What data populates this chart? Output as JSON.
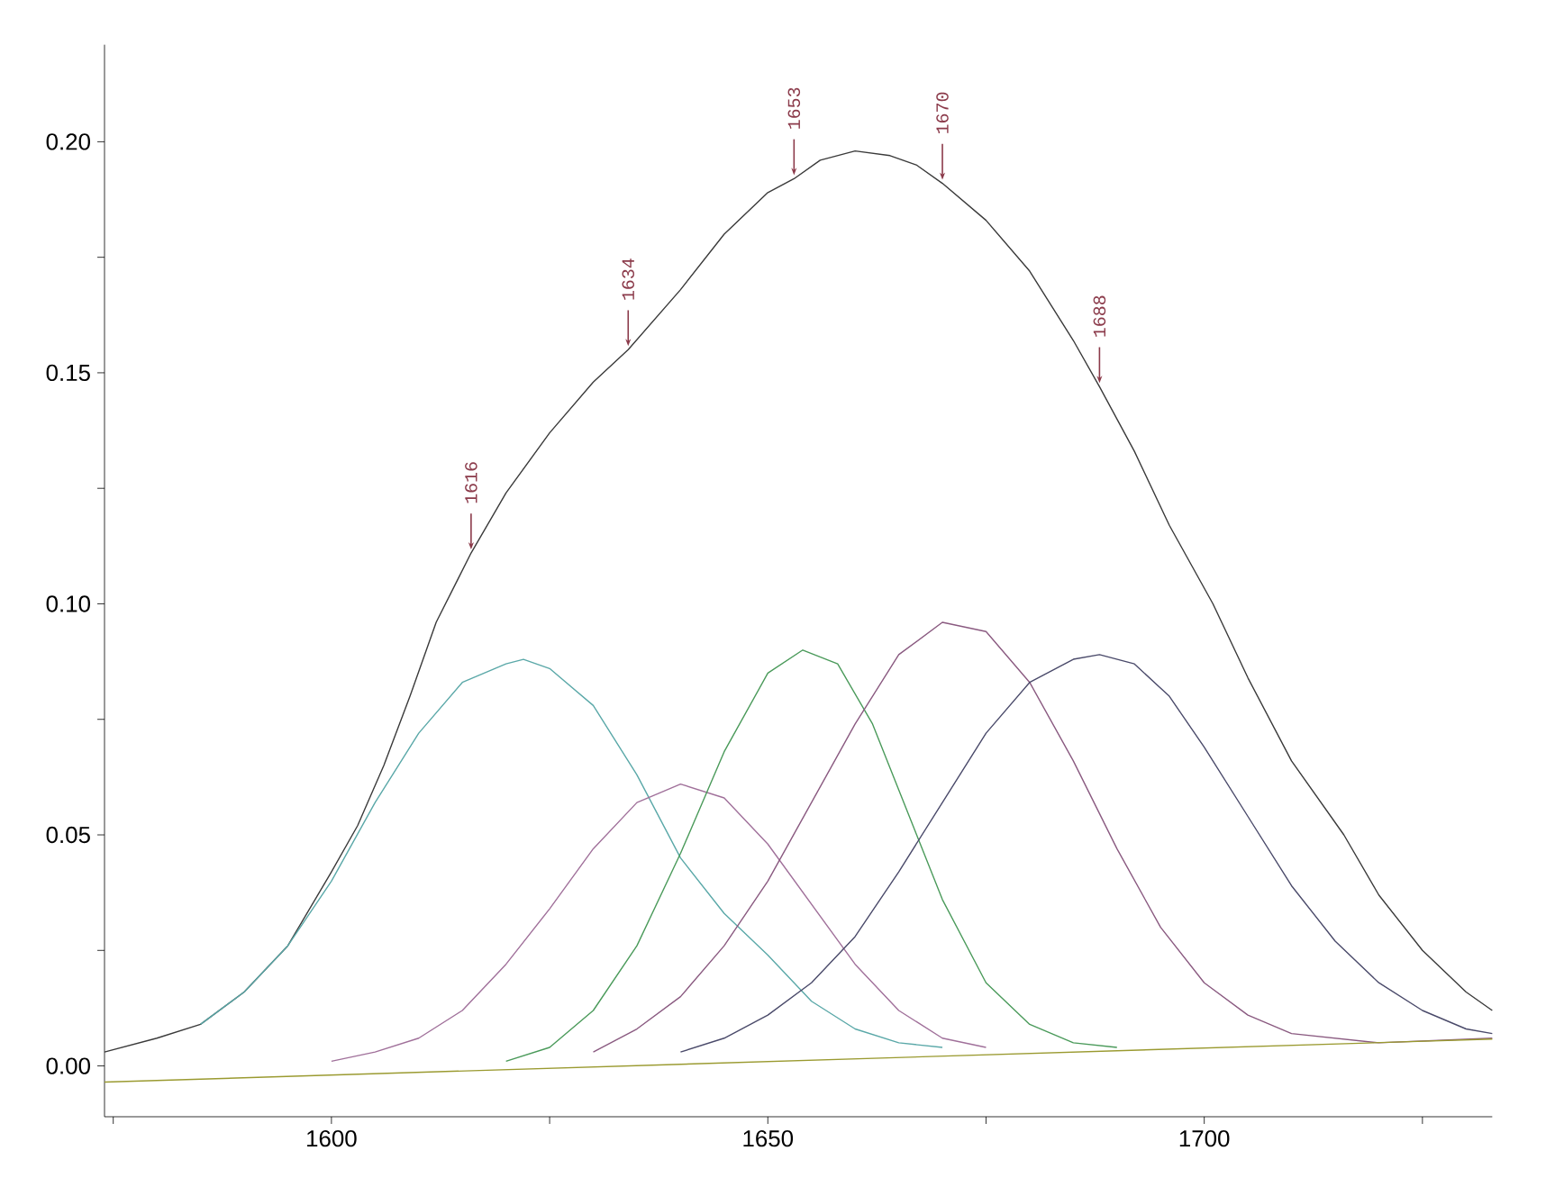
{
  "chart_data": {
    "type": "line",
    "xlim": [
      1574,
      1733
    ],
    "ylim": [
      -0.011,
      0.221
    ],
    "xticks": [
      {
        "value": 1575,
        "label": null
      },
      1600,
      {
        "value": 1625,
        "label": null
      },
      1650,
      {
        "value": 1675,
        "label": null
      },
      1700,
      {
        "value": 1725,
        "label": null
      }
    ],
    "yticks": [
      {
        "value": 0,
        "label": "0.00"
      },
      {
        "value": 0.025,
        "label": null
      },
      0.05,
      {
        "value": 0.075,
        "label": null
      },
      {
        "value": 0.1,
        "label": "0.10"
      },
      {
        "value": 0.125,
        "label": null
      },
      0.15,
      {
        "value": 0.175,
        "label": null
      },
      {
        "value": 0.2,
        "label": "0.20"
      }
    ],
    "marker": "none",
    "series": [
      {
        "color": "#3a3a3a",
        "x": [
          1574,
          1580,
          1585,
          1590,
          1595,
          1600,
          1603,
          1606,
          1609,
          1612,
          1616,
          1620,
          1625,
          1630,
          1634,
          1640,
          1645,
          1650,
          1653,
          1656,
          1660,
          1664,
          1667,
          1670,
          1675,
          1680,
          1685,
          1688,
          1692,
          1696,
          1701,
          1705,
          1710,
          1716,
          1720,
          1725,
          1730,
          1733
        ],
        "values": [
          0.003,
          0.006,
          0.009,
          0.016,
          0.026,
          0.042,
          0.052,
          0.065,
          0.08,
          0.096,
          0.111,
          0.124,
          0.137,
          0.148,
          0.155,
          0.168,
          0.18,
          0.189,
          0.192,
          0.196,
          0.198,
          0.197,
          0.195,
          0.191,
          0.183,
          0.172,
          0.157,
          0.147,
          0.133,
          0.117,
          0.1,
          0.084,
          0.066,
          0.05,
          0.037,
          0.025,
          0.016,
          0.012
        ]
      },
      {
        "color": "#5aa8a8",
        "x": [
          1585,
          1590,
          1595,
          1600,
          1605,
          1610,
          1615,
          1620,
          1622,
          1625,
          1630,
          1635,
          1640,
          1645,
          1650,
          1655,
          1660,
          1665,
          1670
        ],
        "values": [
          0.009,
          0.016,
          0.026,
          0.04,
          0.057,
          0.072,
          0.083,
          0.087,
          0.088,
          0.086,
          0.078,
          0.063,
          0.045,
          0.033,
          0.024,
          0.014,
          0.008,
          0.005,
          0.004
        ]
      },
      {
        "color": "#a0709a",
        "x": [
          1600,
          1605,
          1610,
          1615,
          1620,
          1625,
          1630,
          1635,
          1640,
          1645,
          1650,
          1655,
          1660,
          1665,
          1670,
          1675
        ],
        "values": [
          0.001,
          0.003,
          0.006,
          0.012,
          0.022,
          0.034,
          0.047,
          0.057,
          0.061,
          0.058,
          0.048,
          0.035,
          0.022,
          0.012,
          0.006,
          0.004
        ]
      },
      {
        "color": "#4a9a5a",
        "x": [
          1620,
          1625,
          1630,
          1635,
          1640,
          1645,
          1650,
          1654,
          1658,
          1662,
          1666,
          1670,
          1675,
          1680,
          1685,
          1690
        ],
        "values": [
          0.001,
          0.004,
          0.012,
          0.026,
          0.046,
          0.068,
          0.085,
          0.09,
          0.087,
          0.074,
          0.055,
          0.036,
          0.018,
          0.009,
          0.005,
          0.004
        ]
      },
      {
        "color": "#8a5a80",
        "x": [
          1630,
          1635,
          1640,
          1645,
          1650,
          1655,
          1660,
          1665,
          1670,
          1675,
          1680,
          1685,
          1690,
          1695,
          1700,
          1705,
          1710,
          1720,
          1733
        ],
        "values": [
          0.003,
          0.008,
          0.015,
          0.026,
          0.04,
          0.057,
          0.074,
          0.089,
          0.096,
          0.094,
          0.083,
          0.066,
          0.047,
          0.03,
          0.018,
          0.011,
          0.007,
          0.005,
          0.006
        ]
      },
      {
        "color": "#4a4a6a",
        "x": [
          1640,
          1645,
          1650,
          1655,
          1660,
          1665,
          1670,
          1675,
          1680,
          1685,
          1688,
          1692,
          1696,
          1700,
          1705,
          1710,
          1715,
          1720,
          1725,
          1730,
          1733
        ],
        "values": [
          0.003,
          0.006,
          0.011,
          0.018,
          0.028,
          0.042,
          0.057,
          0.072,
          0.083,
          0.088,
          0.089,
          0.087,
          0.08,
          0.069,
          0.054,
          0.039,
          0.027,
          0.018,
          0.012,
          0.008,
          0.007
        ]
      },
      {
        "color": "#9a9a30",
        "x": [
          1574,
          1733
        ],
        "values": [
          -0.0035,
          0.0058
        ]
      }
    ],
    "annotations": [
      {
        "text": "1616",
        "x": 1616,
        "y": 0.111
      },
      {
        "text": "1634",
        "x": 1634,
        "y": 0.155
      },
      {
        "text": "1653",
        "x": 1653,
        "y": 0.192
      },
      {
        "text": "1670",
        "x": 1670,
        "y": 0.191
      },
      {
        "text": "1688",
        "x": 1688,
        "y": 0.147
      }
    ]
  }
}
